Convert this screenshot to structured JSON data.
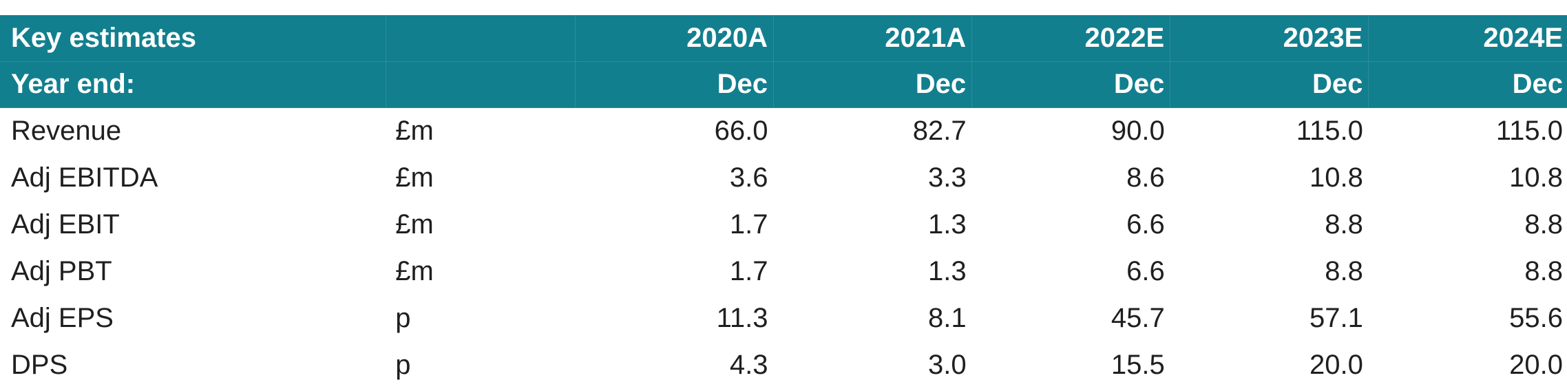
{
  "header": {
    "title": "Key estimates",
    "year_end_label": "Year end:",
    "years": [
      "2020A",
      "2021A",
      "2022E",
      "2023E",
      "2024E"
    ],
    "year_end_values": [
      "Dec",
      "Dec",
      "Dec",
      "Dec",
      "Dec"
    ]
  },
  "rows": [
    {
      "label": "Revenue",
      "unit": "£m",
      "values": [
        "66.0",
        "82.7",
        "90.0",
        "115.0",
        "115.0"
      ]
    },
    {
      "label": "Adj EBITDA",
      "unit": "£m",
      "values": [
        "3.6",
        "3.3",
        "8.6",
        "10.8",
        "10.8"
      ]
    },
    {
      "label": "Adj EBIT",
      "unit": "£m",
      "values": [
        "1.7",
        "1.3",
        "6.6",
        "8.8",
        "8.8"
      ]
    },
    {
      "label": "Adj PBT",
      "unit": "£m",
      "values": [
        "1.7",
        "1.3",
        "6.6",
        "8.8",
        "8.8"
      ]
    },
    {
      "label": "Adj EPS",
      "unit": "p",
      "values": [
        "11.3",
        "8.1",
        "45.7",
        "57.1",
        "55.6"
      ]
    },
    {
      "label": "DPS",
      "unit": "p",
      "values": [
        "4.3",
        "3.0",
        "15.5",
        "20.0",
        "20.0"
      ]
    }
  ],
  "colors": {
    "header_background": "#127f8e",
    "header_text": "#ffffff",
    "body_text": "#1f1f1f"
  }
}
